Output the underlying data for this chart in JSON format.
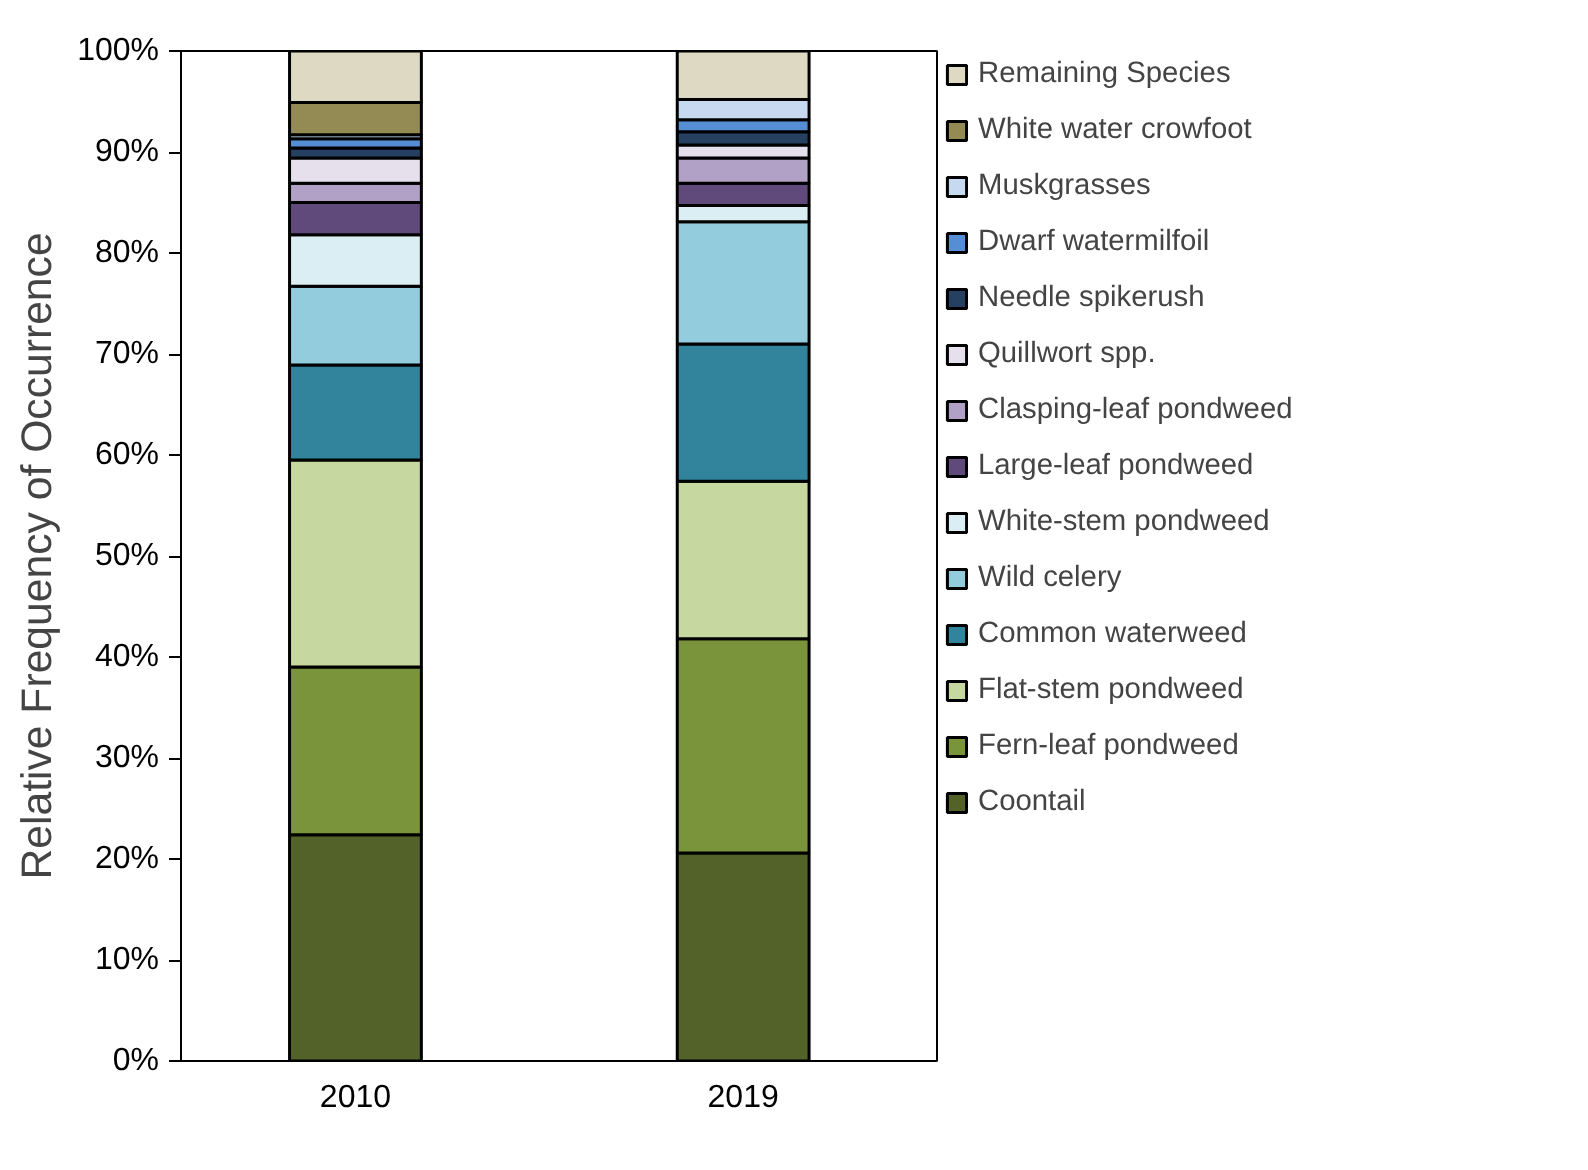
{
  "chart_data": {
    "type": "bar",
    "stacked": true,
    "ylabel": "Relative Frequency of Occurrence",
    "categories": [
      "2010",
      "2019"
    ],
    "ylim": [
      0,
      100
    ],
    "yticks": [
      {
        "value": 0,
        "label": "0%"
      },
      {
        "value": 10,
        "label": "10%"
      },
      {
        "value": 20,
        "label": "20%"
      },
      {
        "value": 30,
        "label": "30%"
      },
      {
        "value": 40,
        "label": "40%"
      },
      {
        "value": 50,
        "label": "50%"
      },
      {
        "value": 60,
        "label": "60%"
      },
      {
        "value": 70,
        "label": "70%"
      },
      {
        "value": 80,
        "label": "80%"
      },
      {
        "value": 90,
        "label": "90%"
      },
      {
        "value": 100,
        "label": "100%"
      }
    ],
    "grid": false,
    "legend": "right",
    "series": [
      {
        "name": "Coontail",
        "color": "#526229",
        "values": [
          22.4,
          20.6
        ]
      },
      {
        "name": "Fern-leaf pondweed",
        "color": "#7a943c",
        "values": [
          16.6,
          21.2
        ]
      },
      {
        "name": "Flat-stem pondweed",
        "color": "#c6d79f",
        "values": [
          20.5,
          15.6
        ]
      },
      {
        "name": "Common waterweed",
        "color": "#31849b",
        "values": [
          9.4,
          13.6
        ]
      },
      {
        "name": "Wild celery",
        "color": "#93cddd",
        "values": [
          7.8,
          12.1
        ]
      },
      {
        "name": "White-stem pondweed",
        "color": "#dbeef4",
        "values": [
          5.1,
          1.6
        ]
      },
      {
        "name": "Large-leaf pondweed",
        "color": "#604a7b",
        "values": [
          3.2,
          2.2
        ]
      },
      {
        "name": "Clasping-leaf pondweed",
        "color": "#b2a1c7",
        "values": [
          1.9,
          2.5
        ]
      },
      {
        "name": "Quillwort spp.",
        "color": "#e5e0ec",
        "values": [
          2.5,
          1.3
        ]
      },
      {
        "name": "Needle spikerush",
        "color": "#254061",
        "values": [
          1.0,
          1.3
        ]
      },
      {
        "name": "Dwarf watermilfoil",
        "color": "#558ed5",
        "values": [
          0.9,
          1.2
        ]
      },
      {
        "name": "Muskgrasses",
        "color": "#c6d9f1",
        "values": [
          0.4,
          2.0
        ]
      },
      {
        "name": "White water crowfoot",
        "color": "#948a54",
        "values": [
          3.2,
          0
        ]
      },
      {
        "name": "Remaining Species",
        "color": "#ddd9c3",
        "values": [
          5.1,
          4.8
        ]
      }
    ]
  }
}
